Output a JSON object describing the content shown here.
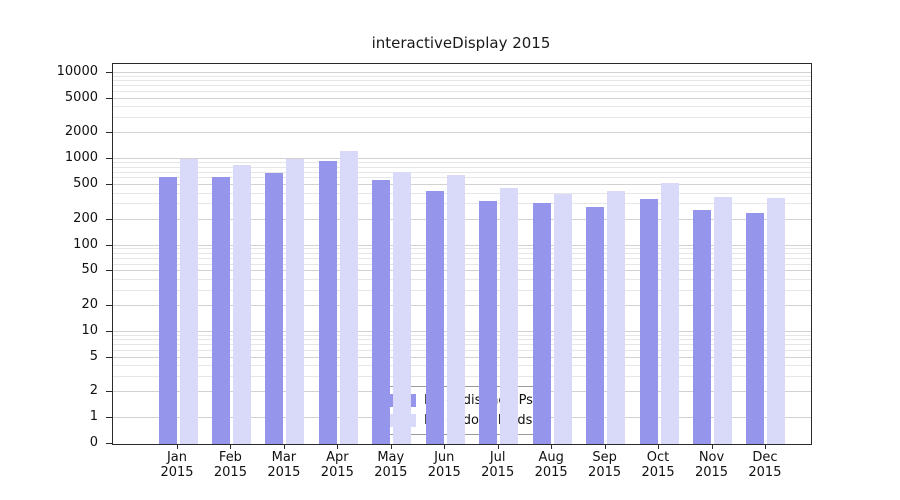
{
  "title": "interactiveDisplay 2015",
  "colors": {
    "ips_bar": "#9595ec",
    "downloads_bar": "#d9d9f9",
    "grid_major": "#d2d2d2",
    "grid_minor": "#e6e6e6"
  },
  "legend": {
    "entries": [
      "Nb of distinct IPs",
      "Nb of downloads"
    ]
  },
  "chart_data": {
    "type": "bar",
    "title": "interactiveDisplay 2015",
    "categories": [
      "Jan 2015",
      "Feb 2015",
      "Mar 2015",
      "Apr 2015",
      "May 2015",
      "Jun 2015",
      "Jul 2015",
      "Aug 2015",
      "Sep 2015",
      "Oct 2015",
      "Nov 2015",
      "Dec 2015"
    ],
    "series": [
      {
        "name": "Nb of distinct IPs",
        "color": "#9595ec",
        "values": [
          620,
          620,
          700,
          950,
          580,
          430,
          330,
          310,
          280,
          350,
          260,
          240
        ]
      },
      {
        "name": "Nb of downloads",
        "color": "#d9d9f9",
        "values": [
          1000,
          850,
          1000,
          1250,
          720,
          660,
          470,
          400,
          430,
          530,
          370,
          360
        ]
      }
    ],
    "xlabel": "",
    "ylabel": "",
    "yscale": "symlog",
    "ylim": [
      0,
      10000
    ],
    "y_ticks": [
      0,
      1,
      2,
      5,
      10,
      20,
      50,
      100,
      200,
      500,
      1000,
      2000,
      5000,
      10000
    ],
    "grid": true,
    "legend_position": "lower center"
  }
}
